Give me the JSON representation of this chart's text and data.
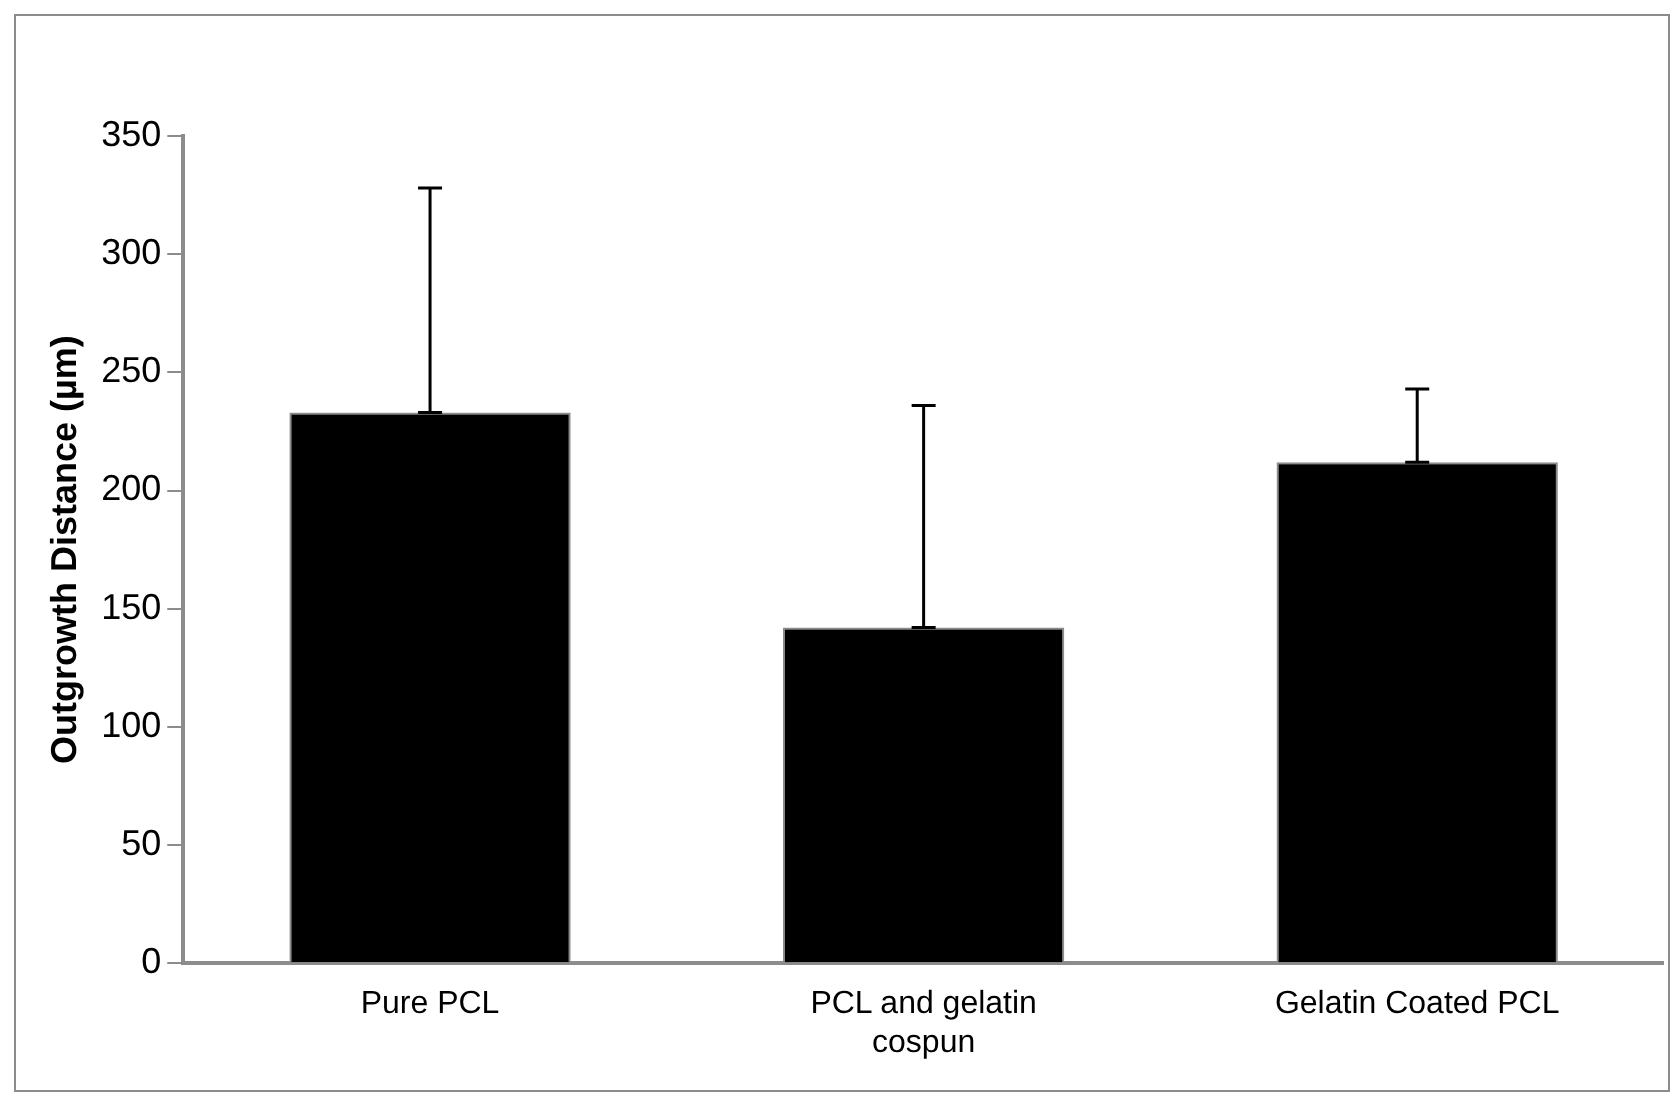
{
  "chart_data": {
    "type": "bar",
    "ylabel": "Outgrowth Distance (µm)",
    "categories": [
      "Pure PCL",
      "PCL and gelatin cospun",
      "Gelatin Coated PCL"
    ],
    "values": [
      233,
      142,
      212
    ],
    "errors": [
      [
        233,
        328
      ],
      [
        142,
        236
      ],
      [
        212,
        243
      ]
    ],
    "color": "#000000",
    "ylim": [
      0,
      350
    ],
    "yticks": [
      0,
      50,
      100,
      150,
      200,
      250,
      300,
      350
    ],
    "grid": false,
    "legend": false
  }
}
